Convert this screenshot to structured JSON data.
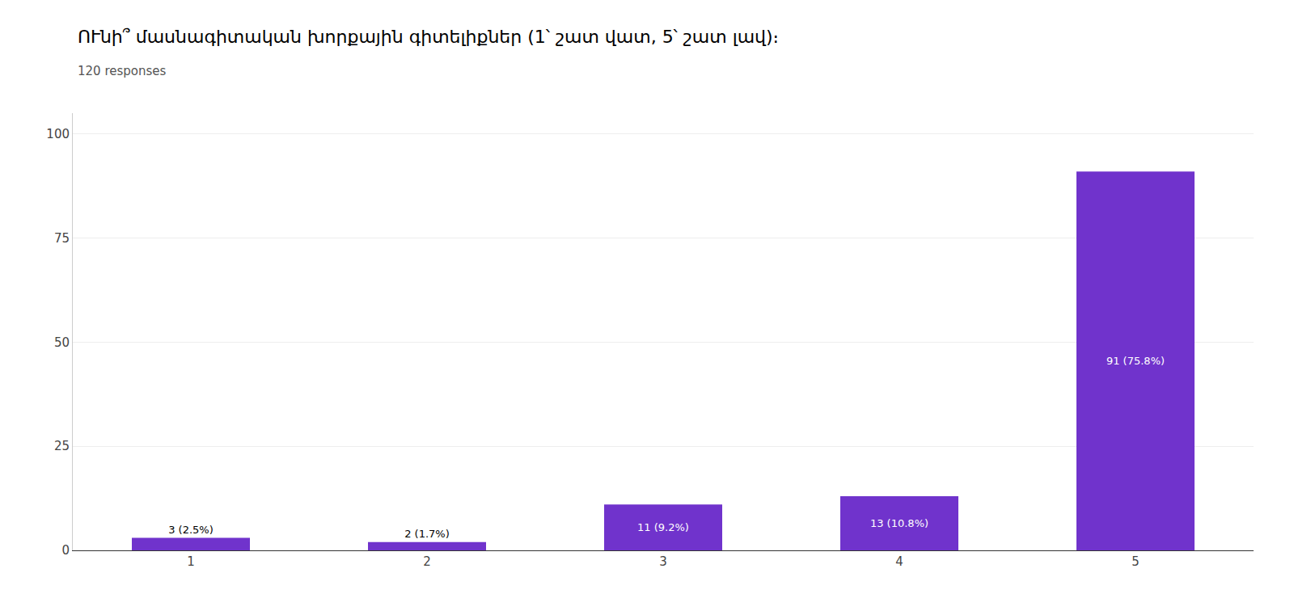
{
  "chart_data": {
    "type": "bar",
    "title": "ՈՒնի՞ մասնագիտական խորքային գիտելիքներ (1՝ շատ վատ, 5՝ շատ լավ)։   ",
    "subtitle": "120 responses",
    "categories": [
      "1",
      "2",
      "3",
      "4",
      "5"
    ],
    "values": [
      3,
      2,
      11,
      13,
      91
    ],
    "value_labels": [
      "3 (2.5%)",
      "2 (1.7%)",
      "11 (9.2%)",
      "13 (10.8%)",
      "91 (75.8%)"
    ],
    "data_labels": true,
    "color": "#7033cc",
    "ylim": [
      0,
      105
    ],
    "yticks": [
      0,
      25,
      50,
      75,
      100
    ],
    "grid": true
  }
}
